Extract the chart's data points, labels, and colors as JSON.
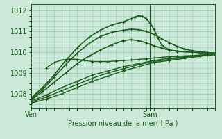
{
  "bg_color": "#cce8d8",
  "grid_color": "#99ccb3",
  "line_color": "#1a5c1a",
  "xlabel": "Pression niveau de la mer( hPa )",
  "xlim": [
    0,
    48
  ],
  "ylim": [
    1007.3,
    1012.3
  ],
  "yticks": [
    1008,
    1009,
    1010,
    1011,
    1012
  ],
  "xtick_positions": [
    0,
    31
  ],
  "xtick_labels": [
    "Ven",
    "Sam"
  ],
  "vline_x": 31,
  "series": [
    {
      "x": [
        0,
        4,
        8,
        12,
        16,
        20,
        24,
        28,
        32,
        36,
        40,
        44,
        48
      ],
      "y": [
        1007.55,
        1007.75,
        1008.0,
        1008.3,
        1008.6,
        1008.85,
        1009.1,
        1009.3,
        1009.5,
        1009.6,
        1009.7,
        1009.8,
        1009.88
      ],
      "lw": 1.0,
      "marker": "+"
    },
    {
      "x": [
        0,
        4,
        8,
        12,
        16,
        20,
        24,
        28,
        32,
        36,
        40,
        44,
        48
      ],
      "y": [
        1007.6,
        1007.85,
        1008.15,
        1008.45,
        1008.75,
        1009.0,
        1009.2,
        1009.4,
        1009.55,
        1009.65,
        1009.75,
        1009.83,
        1009.9
      ],
      "lw": 1.0,
      "marker": "+"
    },
    {
      "x": [
        0,
        4,
        8,
        12,
        16,
        20,
        24,
        28,
        32,
        36,
        40,
        44,
        48
      ],
      "y": [
        1007.65,
        1007.95,
        1008.3,
        1008.6,
        1008.9,
        1009.1,
        1009.3,
        1009.45,
        1009.6,
        1009.7,
        1009.78,
        1009.85,
        1009.93
      ],
      "lw": 1.0,
      "marker": "+"
    },
    {
      "x": [
        4,
        6,
        8,
        10,
        12,
        14,
        16,
        18,
        20,
        22,
        24,
        26,
        28,
        30,
        32,
        34,
        36,
        38,
        40,
        42,
        44,
        46,
        48
      ],
      "y": [
        1009.25,
        1009.5,
        1009.62,
        1009.67,
        1009.65,
        1009.6,
        1009.55,
        1009.55,
        1009.55,
        1009.57,
        1009.6,
        1009.62,
        1009.65,
        1009.68,
        1009.72,
        1009.75,
        1009.78,
        1009.8,
        1009.82,
        1009.84,
        1009.86,
        1009.88,
        1009.9
      ],
      "lw": 1.0,
      "marker": "+"
    },
    {
      "x": [
        0,
        3,
        6,
        9,
        12,
        15,
        18,
        21,
        24,
        26,
        28,
        30,
        32,
        34,
        36,
        38,
        40,
        42,
        44,
        46,
        48
      ],
      "y": [
        1007.7,
        1008.1,
        1008.55,
        1009.0,
        1009.45,
        1009.8,
        1010.1,
        1010.35,
        1010.55,
        1010.6,
        1010.55,
        1010.45,
        1010.3,
        1010.2,
        1010.1,
        1010.05,
        1010.02,
        1010.0,
        1009.98,
        1009.97,
        1009.95
      ],
      "lw": 1.2,
      "marker": "+"
    },
    {
      "x": [
        0,
        3,
        6,
        9,
        12,
        15,
        18,
        21,
        24,
        26,
        28,
        30,
        32,
        34,
        36,
        38,
        40,
        42,
        44,
        46,
        48
      ],
      "y": [
        1007.75,
        1008.2,
        1008.8,
        1009.4,
        1009.95,
        1010.4,
        1010.75,
        1010.95,
        1011.05,
        1011.1,
        1011.08,
        1011.0,
        1010.85,
        1010.65,
        1010.45,
        1010.28,
        1010.15,
        1010.07,
        1010.02,
        1009.98,
        1009.95
      ],
      "lw": 1.2,
      "marker": "+"
    },
    {
      "x": [
        0,
        3,
        6,
        9,
        12,
        15,
        18,
        21,
        24,
        26,
        27,
        28,
        29,
        30,
        31,
        32,
        33,
        34,
        36,
        38,
        40,
        42,
        44,
        46,
        48
      ],
      "y": [
        1007.8,
        1008.3,
        1008.9,
        1009.6,
        1010.2,
        1010.7,
        1011.05,
        1011.3,
        1011.45,
        1011.6,
        1011.68,
        1011.75,
        1011.72,
        1011.6,
        1011.4,
        1011.1,
        1010.7,
        1010.35,
        1010.1,
        1010.05,
        1010.02,
        1010.0,
        1009.98,
        1009.97,
        1009.95
      ],
      "lw": 1.2,
      "marker": "+"
    }
  ]
}
